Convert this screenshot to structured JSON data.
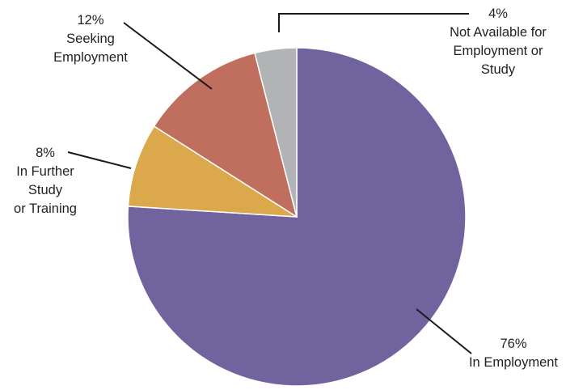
{
  "chart_data": {
    "type": "pie",
    "slices": [
      {
        "label": "In Employment",
        "value": 76,
        "pct_text": "76%",
        "label_lines": [
          "In Employment"
        ],
        "color": "#71639e"
      },
      {
        "label": "In Further Study or Training",
        "value": 8,
        "pct_text": "8%",
        "label_lines": [
          "In Further",
          "Study",
          "or Training"
        ],
        "color": "#dba84b"
      },
      {
        "label": "Seeking Employment",
        "value": 12,
        "pct_text": "12%",
        "label_lines": [
          "Seeking",
          "Employment"
        ],
        "color": "#c06f5e"
      },
      {
        "label": "Not Available for Employment or Study",
        "value": 4,
        "pct_text": "4%",
        "label_lines": [
          "Not Available for",
          "Employment or",
          "Study"
        ],
        "color": "#b1b3b4"
      }
    ],
    "start": "12 o'clock",
    "direction": "clockwise",
    "legend": "none",
    "title": ""
  }
}
